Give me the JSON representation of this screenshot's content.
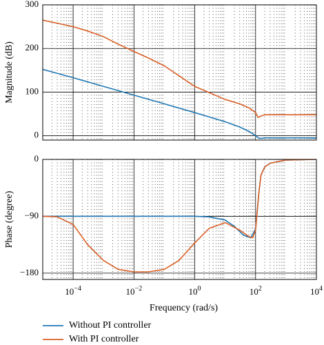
{
  "chart_data": [
    {
      "type": "line",
      "ylabel": "Magnitude (dB)",
      "xscale": "log",
      "xlim": [
        1e-05,
        10000
      ],
      "ylim": [
        -10,
        300
      ],
      "yticks": [
        0,
        100,
        200,
        300
      ],
      "ytick_labels": [
        "0",
        "100",
        "200",
        "300"
      ],
      "grid": true,
      "series": [
        {
          "name": "Without PI controller",
          "color": "#1f77b4",
          "x": [
            1e-05,
            0.0001,
            0.001,
            0.01,
            0.1,
            1,
            3,
            10,
            30,
            60,
            100,
            130,
            160,
            200,
            300,
            1000,
            10000
          ],
          "y": [
            152,
            133,
            113,
            93,
            73,
            53,
            43,
            32,
            20,
            10,
            0,
            -6,
            -6,
            -5,
            -5,
            -5,
            -5
          ]
        },
        {
          "name": "With PI controller",
          "color": "#d95f24",
          "x": [
            1e-05,
            0.0001,
            0.0003,
            0.001,
            0.003,
            0.01,
            0.03,
            0.1,
            1,
            10,
            30,
            60,
            100,
            120,
            150,
            200,
            300,
            1000,
            10000
          ],
          "y": [
            265,
            250,
            240,
            227,
            210,
            193,
            178,
            160,
            113,
            83,
            73,
            64,
            53,
            42,
            45,
            48,
            48,
            48,
            48
          ]
        }
      ]
    },
    {
      "type": "line",
      "xlabel": "Frequency (rad/s)",
      "ylabel": "Phase (degree)",
      "xscale": "log",
      "xlim": [
        1e-05,
        10000
      ],
      "ylim": [
        -190,
        0
      ],
      "yticks": [
        -180,
        -90,
        0
      ],
      "ytick_labels": [
        "−180",
        "−90",
        "0"
      ],
      "xticks": [
        0.0001,
        0.01,
        1,
        100,
        10000
      ],
      "xtick_labels": [
        {
          "base": "10",
          "exp": "−4"
        },
        {
          "base": "10",
          "exp": "−2"
        },
        {
          "base": "10",
          "exp": "0"
        },
        {
          "base": "10",
          "exp": "2"
        },
        {
          "base": "10",
          "exp": "4"
        }
      ],
      "grid": true,
      "series": [
        {
          "name": "Without PI controller",
          "color": "#1f77b4",
          "x": [
            1e-05,
            1,
            3,
            10,
            20,
            40,
            70,
            100,
            130,
            150,
            200,
            300,
            1000,
            10000
          ],
          "y": [
            -90,
            -90,
            -91,
            -96,
            -106,
            -120,
            -124,
            -110,
            -50,
            -25,
            -12,
            -6,
            -1,
            0
          ]
        },
        {
          "name": "With PI controller",
          "color": "#d95f24",
          "x": [
            1e-05,
            3e-05,
            0.0001,
            0.0003,
            0.001,
            0.003,
            0.01,
            0.03,
            0.1,
            0.3,
            1,
            3,
            10,
            30,
            60,
            80,
            100,
            130,
            150,
            200,
            300,
            1000,
            10000
          ],
          "y": [
            -90,
            -91,
            -103,
            -135,
            -160,
            -174,
            -178,
            -178,
            -174,
            -160,
            -132,
            -109,
            -100,
            -112,
            -122,
            -124,
            -112,
            -50,
            -25,
            -12,
            -6,
            -1,
            0
          ]
        }
      ]
    }
  ],
  "legend": {
    "placement": "bottom-left",
    "entries": [
      {
        "label": "Without PI controller",
        "color": "#1f77b4"
      },
      {
        "label": "With PI controller",
        "color": "#d95f24"
      }
    ]
  }
}
